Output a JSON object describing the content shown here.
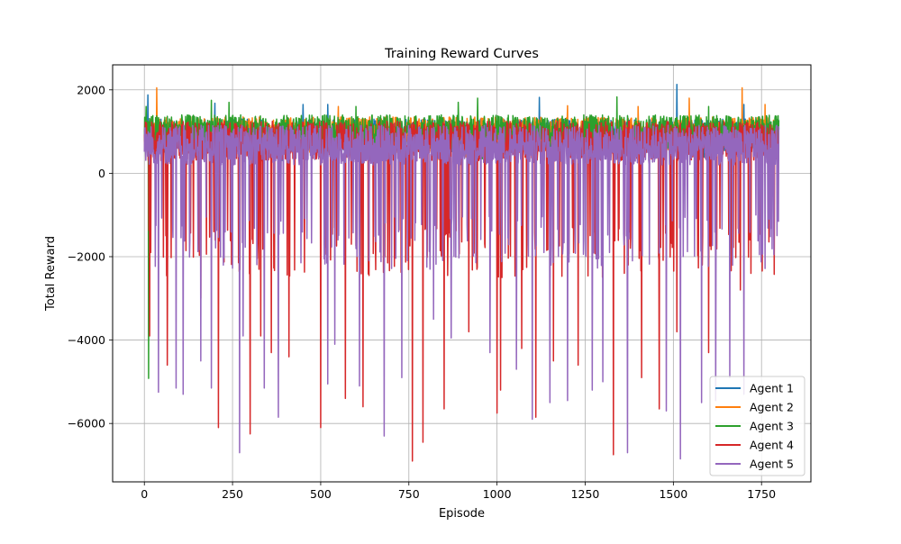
{
  "chart_data": {
    "type": "line",
    "title": "Training Reward Curves",
    "xlabel": "Episode",
    "ylabel": "Total Reward",
    "xlim": [
      -90,
      1890
    ],
    "ylim": [
      -7400,
      2600
    ],
    "xticks": [
      0,
      250,
      500,
      750,
      1000,
      1250,
      1500,
      1750
    ],
    "yticks": [
      -6000,
      -4000,
      -2000,
      0,
      2000
    ],
    "grid": true,
    "legend_position": "lower-right",
    "episodes": 1800,
    "series": [
      {
        "name": "Agent 1",
        "color": "#1f77b4",
        "baseline": [
          500,
          1300
        ],
        "spike_rate": 0.005,
        "spike_range": [
          300,
          700
        ],
        "peaks": [
          [
            10,
            1880
          ],
          [
            200,
            1680
          ],
          [
            450,
            1650
          ],
          [
            520,
            1650
          ],
          [
            1120,
            1820
          ],
          [
            1510,
            2130
          ],
          [
            1700,
            1650
          ]
        ]
      },
      {
        "name": "Agent 2",
        "color": "#ff7f0e",
        "baseline": [
          500,
          1350
        ],
        "spike_rate": 0.005,
        "spike_range": [
          300,
          700
        ],
        "peaks": [
          [
            35,
            2050
          ],
          [
            550,
            1600
          ],
          [
            1200,
            1620
          ],
          [
            1400,
            1600
          ],
          [
            1545,
            1800
          ],
          [
            1695,
            2050
          ],
          [
            1760,
            1650
          ]
        ]
      },
      {
        "name": "Agent 3",
        "color": "#2ca02c",
        "baseline": [
          600,
          1400
        ],
        "spike_rate": 0.005,
        "spike_range": [
          300,
          700
        ],
        "peaks": [
          [
            5,
            1600
          ],
          [
            12,
            -4920
          ],
          [
            190,
            1750
          ],
          [
            240,
            1700
          ],
          [
            600,
            1600
          ],
          [
            890,
            1700
          ],
          [
            945,
            1800
          ],
          [
            1340,
            1830
          ],
          [
            1600,
            1600
          ],
          [
            1810,
            1500
          ]
        ]
      },
      {
        "name": "Agent 4",
        "color": "#d62728",
        "baseline": [
          300,
          1250
        ],
        "spike_rate": 0.09,
        "spike_range": [
          -2500,
          -1300
        ],
        "peaks": [
          [
            15,
            -3900
          ],
          [
            65,
            -4600
          ],
          [
            160,
            -3000
          ],
          [
            210,
            -6100
          ],
          [
            300,
            -6250
          ],
          [
            330,
            -3900
          ],
          [
            360,
            -4300
          ],
          [
            410,
            -4400
          ],
          [
            500,
            -6100
          ],
          [
            570,
            -5400
          ],
          [
            620,
            -5600
          ],
          [
            760,
            -6900
          ],
          [
            790,
            -6450
          ],
          [
            850,
            -5650
          ],
          [
            920,
            -3800
          ],
          [
            1000,
            -5750
          ],
          [
            1010,
            -5200
          ],
          [
            1070,
            -4200
          ],
          [
            1110,
            -5850
          ],
          [
            1160,
            -4500
          ],
          [
            1230,
            -4600
          ],
          [
            1330,
            -6750
          ],
          [
            1410,
            -4900
          ],
          [
            1460,
            -5650
          ],
          [
            1510,
            -3800
          ],
          [
            1600,
            -4300
          ],
          [
            1690,
            -2800
          ],
          [
            1720,
            -2400
          ]
        ]
      },
      {
        "name": "Agent 5",
        "color": "#9467bd",
        "baseline": [
          200,
          1150
        ],
        "spike_rate": 0.11,
        "spike_range": [
          -2300,
          -1000
        ],
        "peaks": [
          [
            40,
            -5250
          ],
          [
            90,
            -5150
          ],
          [
            110,
            -5300
          ],
          [
            160,
            -4500
          ],
          [
            190,
            -5150
          ],
          [
            270,
            -6700
          ],
          [
            280,
            -3900
          ],
          [
            340,
            -5150
          ],
          [
            380,
            -5850
          ],
          [
            520,
            -5050
          ],
          [
            540,
            -4100
          ],
          [
            610,
            -5100
          ],
          [
            680,
            -6300
          ],
          [
            730,
            -4900
          ],
          [
            820,
            -3500
          ],
          [
            870,
            -3950
          ],
          [
            980,
            -4300
          ],
          [
            1055,
            -4700
          ],
          [
            1100,
            -5900
          ],
          [
            1150,
            -5500
          ],
          [
            1200,
            -5450
          ],
          [
            1270,
            -5200
          ],
          [
            1300,
            -5000
          ],
          [
            1370,
            -6700
          ],
          [
            1480,
            -5700
          ],
          [
            1520,
            -6850
          ],
          [
            1580,
            -5500
          ],
          [
            1620,
            -5450
          ],
          [
            1660,
            -4900
          ],
          [
            1700,
            -5300
          ]
        ]
      }
    ]
  }
}
